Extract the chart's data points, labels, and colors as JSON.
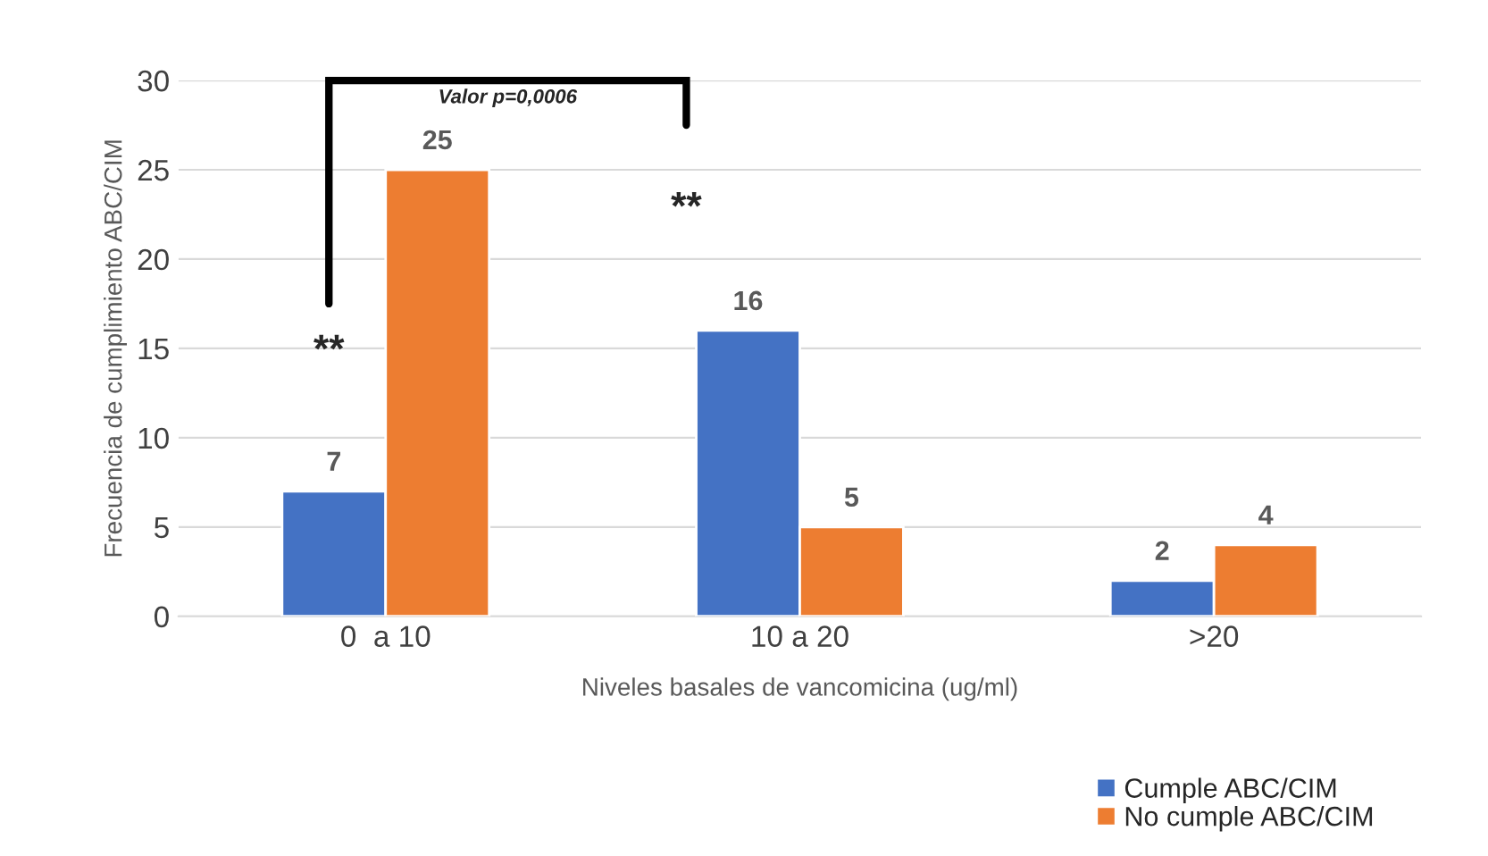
{
  "chart_data": {
    "type": "bar",
    "xlabel": "Niveles basales de vancomicina (ug/ml)",
    "ylabel": "Frecuencia de cumplimiento ABC/CIM",
    "categories": [
      "0  a 10",
      "10 a 20",
      ">20"
    ],
    "series": [
      {
        "name": "Cumple ABC/CIM",
        "color": "#4472c4",
        "values": [
          7,
          16,
          2
        ]
      },
      {
        "name": "No cumple ABC/CIM",
        "color": "#ed7d31",
        "values": [
          25,
          5,
          4
        ]
      }
    ],
    "ylim": [
      0,
      30
    ],
    "yticks": [
      0,
      5,
      10,
      15,
      20,
      25,
      30
    ],
    "grid": "y",
    "legend": "bottom right",
    "data_labels": true,
    "annotations": [
      "Valor p=0,0006",
      "**",
      "**"
    ]
  }
}
